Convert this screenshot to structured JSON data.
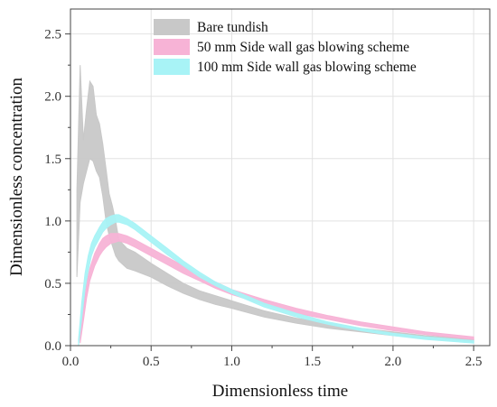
{
  "chart_data": {
    "type": "line",
    "xlabel": "Dimensionless time",
    "ylabel": "Dimensionless concentration",
    "xlim": [
      0.0,
      2.6
    ],
    "ylim": [
      0.0,
      2.7
    ],
    "x_ticks": [
      "0.0",
      "0.5",
      "1.0",
      "1.5",
      "2.0",
      "2.5"
    ],
    "y_ticks": [
      "0.0",
      "0.5",
      "1.0",
      "1.5",
      "2.0",
      "2.5"
    ],
    "grid": true,
    "legend_position": "top-right",
    "series": [
      {
        "name": "Bare tundish",
        "color": "#c8c8c8",
        "x": [
          0.04,
          0.06,
          0.08,
          0.1,
          0.12,
          0.14,
          0.16,
          0.18,
          0.2,
          0.22,
          0.24,
          0.26,
          0.28,
          0.3,
          0.35,
          0.4,
          0.5,
          0.6,
          0.7,
          0.8,
          0.9,
          1.0,
          1.2,
          1.4,
          1.6,
          1.8,
          2.0,
          2.2,
          2.5
        ],
        "upper": [
          1.25,
          2.25,
          1.65,
          1.9,
          2.12,
          2.08,
          1.85,
          1.78,
          1.62,
          1.42,
          1.22,
          1.12,
          1.0,
          0.85,
          0.78,
          0.75,
          0.66,
          0.58,
          0.5,
          0.44,
          0.4,
          0.36,
          0.28,
          0.22,
          0.18,
          0.14,
          0.11,
          0.08,
          0.05
        ],
        "lower": [
          0.55,
          1.15,
          1.3,
          1.4,
          1.5,
          1.48,
          1.4,
          1.35,
          1.2,
          1.0,
          0.88,
          0.8,
          0.72,
          0.68,
          0.62,
          0.6,
          0.55,
          0.48,
          0.42,
          0.37,
          0.33,
          0.3,
          0.23,
          0.18,
          0.14,
          0.11,
          0.08,
          0.06,
          0.03
        ]
      },
      {
        "name": "50 mm Side wall gas blowing scheme",
        "color": "#f7b3d6",
        "x": [
          0.06,
          0.08,
          0.1,
          0.12,
          0.15,
          0.18,
          0.2,
          0.22,
          0.25,
          0.28,
          0.3,
          0.35,
          0.4,
          0.5,
          0.6,
          0.7,
          0.8,
          0.9,
          1.0,
          1.2,
          1.4,
          1.6,
          1.8,
          2.0,
          2.2,
          2.5
        ],
        "upper": [
          0.08,
          0.3,
          0.5,
          0.62,
          0.74,
          0.82,
          0.86,
          0.88,
          0.9,
          0.9,
          0.9,
          0.88,
          0.85,
          0.78,
          0.71,
          0.64,
          0.57,
          0.51,
          0.45,
          0.37,
          0.3,
          0.24,
          0.19,
          0.15,
          0.11,
          0.07
        ],
        "lower": [
          0.02,
          0.2,
          0.38,
          0.52,
          0.64,
          0.72,
          0.76,
          0.79,
          0.82,
          0.83,
          0.84,
          0.82,
          0.79,
          0.72,
          0.65,
          0.58,
          0.52,
          0.46,
          0.41,
          0.33,
          0.26,
          0.21,
          0.16,
          0.12,
          0.09,
          0.05
        ]
      },
      {
        "name": "100 mm Side wall gas blowing scheme",
        "color": "#a8f3f6",
        "x": [
          0.05,
          0.07,
          0.09,
          0.11,
          0.13,
          0.15,
          0.18,
          0.2,
          0.22,
          0.25,
          0.28,
          0.3,
          0.35,
          0.4,
          0.5,
          0.6,
          0.7,
          0.8,
          0.9,
          1.0,
          1.2,
          1.4,
          1.6,
          1.8,
          2.0,
          2.2,
          2.5
        ],
        "upper": [
          0.05,
          0.35,
          0.58,
          0.72,
          0.82,
          0.88,
          0.95,
          0.99,
          1.02,
          1.04,
          1.05,
          1.05,
          1.02,
          0.98,
          0.88,
          0.78,
          0.68,
          0.59,
          0.51,
          0.45,
          0.34,
          0.26,
          0.19,
          0.14,
          0.1,
          0.07,
          0.04
        ],
        "lower": [
          0.0,
          0.22,
          0.45,
          0.6,
          0.72,
          0.79,
          0.86,
          0.91,
          0.94,
          0.97,
          0.99,
          0.99,
          0.97,
          0.93,
          0.83,
          0.73,
          0.64,
          0.55,
          0.48,
          0.42,
          0.31,
          0.23,
          0.17,
          0.12,
          0.08,
          0.05,
          0.02
        ]
      }
    ]
  }
}
